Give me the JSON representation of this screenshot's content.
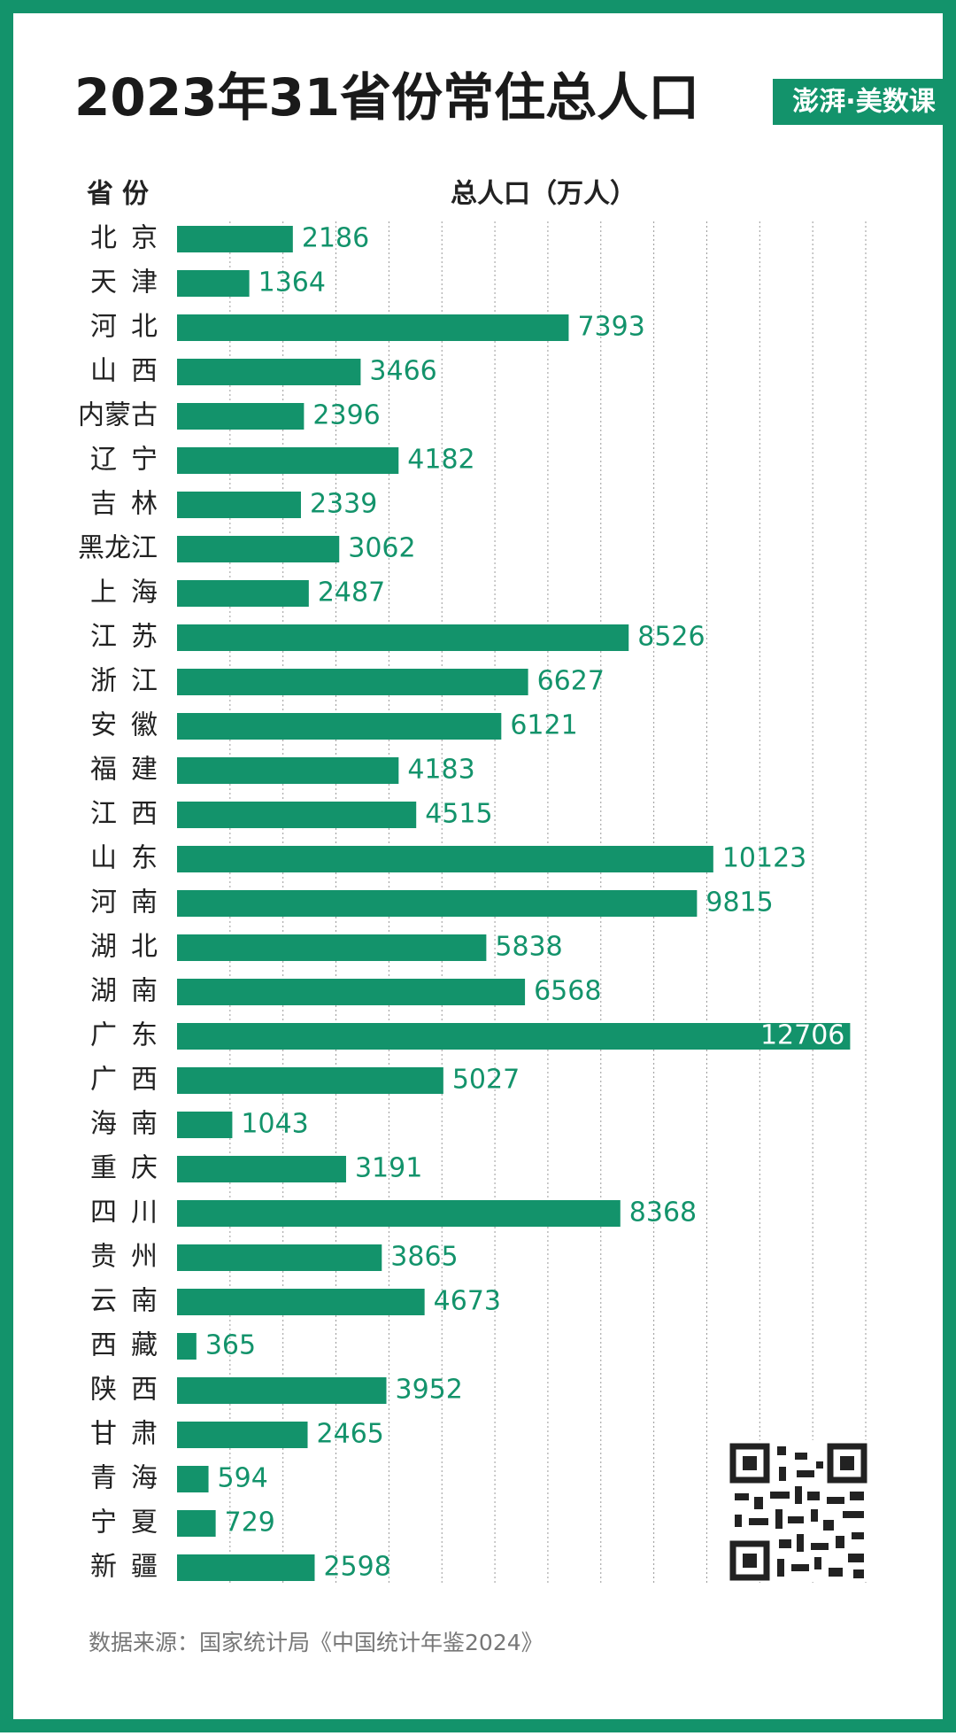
{
  "chart_data": {
    "type": "hbar",
    "title": "2023年31省份常住总人口",
    "logo": "澎湃·美数课",
    "category_header": "省份",
    "value_header": "总人口（万人）",
    "source": "数据来源：国家统计局《中国统计年鉴2024》",
    "categories": [
      "北京",
      "天津",
      "河北",
      "山西",
      "内蒙古",
      "辽宁",
      "吉林",
      "黑龙江",
      "上海",
      "江苏",
      "浙江",
      "安徽",
      "福建",
      "江西",
      "山东",
      "河南",
      "湖北",
      "湖南",
      "广东",
      "广西",
      "海南",
      "重庆",
      "四川",
      "贵州",
      "云南",
      "西藏",
      "陕西",
      "甘肃",
      "青海",
      "宁夏",
      "新疆"
    ],
    "values": [
      2186,
      1364,
      7393,
      3466,
      2396,
      4182,
      2339,
      3062,
      2487,
      8526,
      6627,
      6121,
      4183,
      4515,
      10123,
      9815,
      5838,
      6568,
      12706,
      5027,
      1043,
      3191,
      8368,
      3865,
      4673,
      365,
      3952,
      2465,
      594,
      729,
      2598
    ],
    "color": "#13936b",
    "xlim": [
      0,
      13000
    ],
    "xticks": [
      1000,
      2000,
      3000,
      4000,
      5000,
      6000,
      7000,
      8000,
      9000,
      10000,
      11000,
      12000,
      13000
    ],
    "grid": true
  }
}
